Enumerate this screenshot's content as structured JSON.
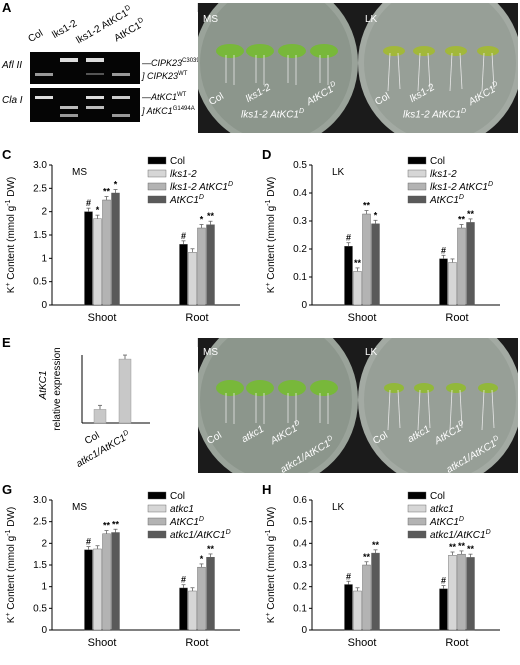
{
  "colors": {
    "black": "#000000",
    "light": "#d6d6d6",
    "mid": "#b3b3b3",
    "dark": "#5a5a5a"
  },
  "A": {
    "label": "A",
    "lanes": [
      "Col",
      "lks1-2",
      "lks1-2 AtKC1",
      "AtKC1"
    ],
    "lane_sup": [
      "",
      "",
      "D",
      "D"
    ],
    "row1": "Afl II",
    "row2": "Cla I",
    "bands_right": [
      {
        "t": "CIPK23",
        "s": "C3039T"
      },
      {
        "t": "CIPK23",
        "s": "WT"
      },
      {
        "t": "AtKC1",
        "s": "WT"
      },
      {
        "t": "AtKC1",
        "s": "G1494A"
      }
    ]
  },
  "B": {
    "label": "B",
    "left_tag": "MS",
    "right_tag": "LK",
    "plants": [
      "Col",
      "lks1-2",
      "lks1-2 AtKC1",
      "AtKC1"
    ],
    "plants_sup": [
      "",
      "",
      "D",
      "D"
    ]
  },
  "F": {
    "label": "F",
    "left_tag": "MS",
    "right_tag": "LK",
    "plants": [
      "Col",
      "atkc1",
      "AtKC1",
      "atkc1/AtKC1"
    ],
    "plants_sup": [
      "",
      "",
      "D",
      "D"
    ]
  },
  "E": {
    "label": "E",
    "ylabel_gene": "AtKC1",
    "ylabel_rest": "relative expression",
    "categories": [
      "Col",
      "atkc1/AtKC1"
    ],
    "cat_sup": [
      "",
      "D"
    ]
  },
  "chart_data": [
    {
      "panel": "C",
      "type": "bar",
      "tag": "MS",
      "ylabel": "K+ Content (mmol g-1 DW)",
      "ylim": [
        0,
        3.0
      ],
      "yticks": [
        "0",
        "0.5",
        "1",
        "1.5",
        "2",
        "2.5",
        "3.0"
      ],
      "categories": [
        "Shoot",
        "Root"
      ],
      "series": [
        {
          "name": "Col",
          "values": [
            2.0,
            1.3
          ],
          "marks": [
            "#",
            "#"
          ]
        },
        {
          "name": "lks1-2",
          "values": [
            1.85,
            1.13
          ],
          "marks": [
            "*",
            ""
          ]
        },
        {
          "name": "lks1-2 AtKC1",
          "sup": "D",
          "values": [
            2.25,
            1.65
          ],
          "marks": [
            "**",
            "*"
          ]
        },
        {
          "name": "AtKC1",
          "sup": "D",
          "values": [
            2.4,
            1.72
          ],
          "marks": [
            "*",
            "**"
          ]
        }
      ],
      "legend": "top-right"
    },
    {
      "panel": "D",
      "type": "bar",
      "tag": "LK",
      "ylabel": "K+ Content (mmol g-1 DW)",
      "ylim": [
        0,
        0.5
      ],
      "yticks": [
        "0",
        "0.1",
        "0.2",
        "0.3",
        "0.4",
        "0.5"
      ],
      "categories": [
        "Shoot",
        "Root"
      ],
      "series": [
        {
          "name": "Col",
          "values": [
            0.21,
            0.165
          ],
          "marks": [
            "#",
            "#"
          ]
        },
        {
          "name": "lks1-2",
          "values": [
            0.12,
            0.152
          ],
          "marks": [
            "**",
            ""
          ]
        },
        {
          "name": "lks1-2 AtKC1",
          "sup": "D",
          "values": [
            0.325,
            0.275
          ],
          "marks": [
            "**",
            "**"
          ]
        },
        {
          "name": "AtKC1",
          "sup": "D",
          "values": [
            0.29,
            0.295
          ],
          "marks": [
            "*",
            "**"
          ]
        }
      ],
      "legend": "top-right"
    },
    {
      "panel": "E",
      "type": "bar",
      "ylim": [
        0,
        5
      ],
      "categories": [
        "Col",
        "atkc1/AtKC1"
      ],
      "values": [
        1.0,
        4.7
      ]
    },
    {
      "panel": "G",
      "type": "bar",
      "tag": "MS",
      "ylabel": "K+ Content (mmol g-1 DW)",
      "ylim": [
        0,
        3.0
      ],
      "yticks": [
        "0",
        "0.5",
        "1",
        "1.5",
        "2",
        "2.5",
        "3.0"
      ],
      "categories": [
        "Shoot",
        "Root"
      ],
      "series": [
        {
          "name": "Col",
          "values": [
            1.85,
            0.97
          ],
          "marks": [
            "#",
            "#"
          ]
        },
        {
          "name": "atkc1",
          "values": [
            1.87,
            0.9
          ],
          "marks": [
            "",
            ""
          ]
        },
        {
          "name": "AtKC1",
          "sup": "D",
          "values": [
            2.22,
            1.45
          ],
          "marks": [
            "**",
            "*"
          ]
        },
        {
          "name": "atkc1/AtKC1",
          "sup": "D",
          "values": [
            2.25,
            1.68
          ],
          "marks": [
            "**",
            "**"
          ]
        }
      ],
      "legend": "top-right"
    },
    {
      "panel": "H",
      "type": "bar",
      "tag": "LK",
      "ylabel": "K+ Content (mmol g-1 DW)",
      "ylim": [
        0,
        0.6
      ],
      "yticks": [
        "0",
        "0.1",
        "0.2",
        "0.3",
        "0.4",
        "0.5",
        "0.6"
      ],
      "categories": [
        "Shoot",
        "Root"
      ],
      "series": [
        {
          "name": "Col",
          "values": [
            0.21,
            0.19
          ],
          "marks": [
            "#",
            "#"
          ]
        },
        {
          "name": "atkc1",
          "values": [
            0.18,
            0.345
          ],
          "marks": [
            "",
            "**"
          ]
        },
        {
          "name": "AtKC1",
          "sup": "D",
          "values": [
            0.3,
            0.35
          ],
          "marks": [
            "**",
            "**"
          ]
        },
        {
          "name": "atkc1/AtKC1",
          "sup": "D",
          "values": [
            0.355,
            0.335
          ],
          "marks": [
            "**",
            "**"
          ]
        }
      ],
      "legend": "top-right"
    }
  ]
}
